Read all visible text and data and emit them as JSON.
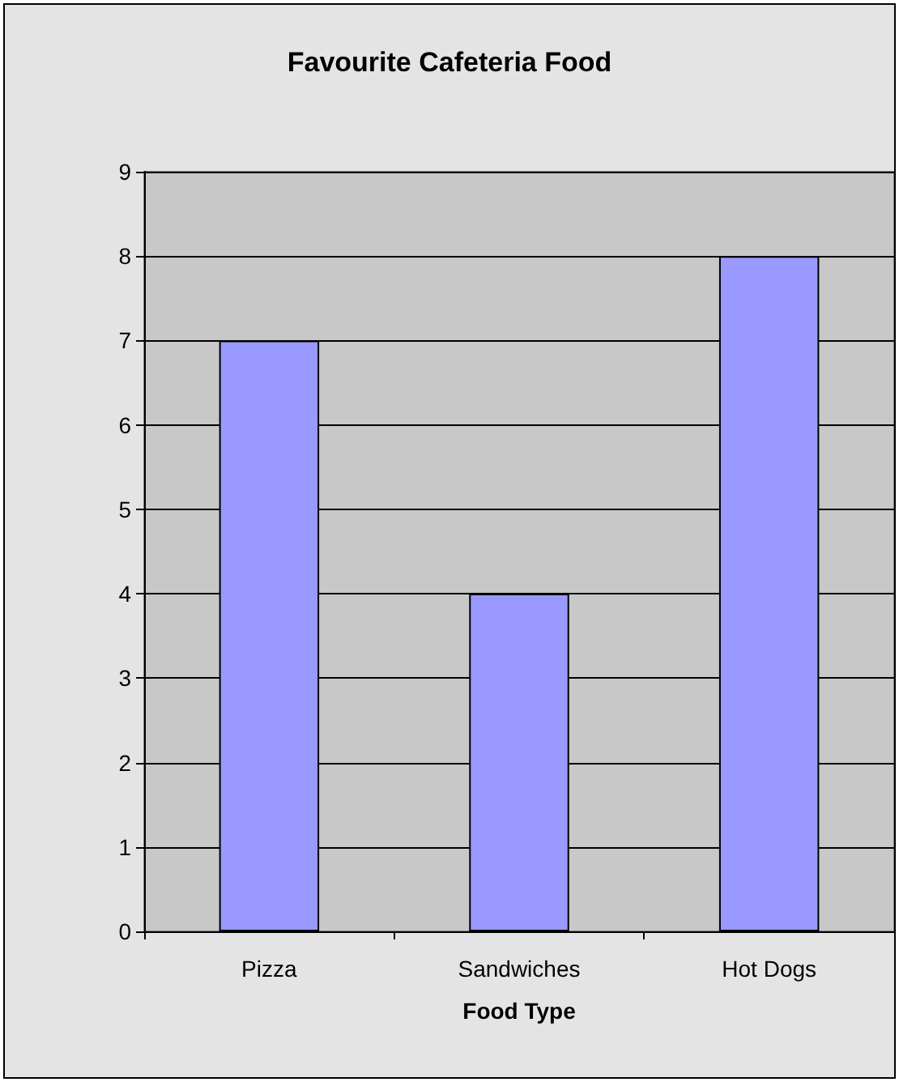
{
  "chart_data": {
    "type": "bar",
    "title": "Favourite Cafeteria Food",
    "xlabel": "Food Type",
    "categories": [
      "Pizza",
      "Sandwiches",
      "Hot Dogs"
    ],
    "values": [
      7,
      4,
      8
    ],
    "color": "#9999ff",
    "ylim": [
      0,
      9
    ],
    "yticks": [
      0,
      1,
      2,
      3,
      4,
      5,
      6,
      7,
      8,
      9
    ],
    "grid": "y"
  }
}
